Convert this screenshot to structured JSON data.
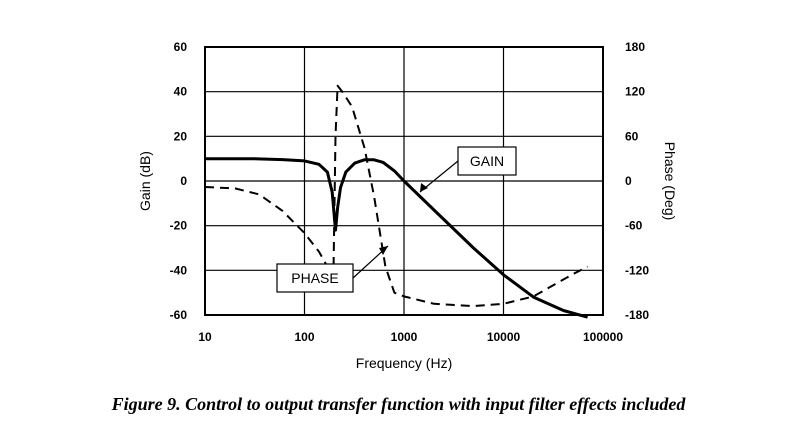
{
  "caption": "Figure 9. Control to output transfer function with input filter effects included",
  "chart_data": {
    "type": "line",
    "x_scale": "log",
    "xlim": [
      10,
      100000
    ],
    "ylim_left": [
      -60,
      60
    ],
    "ylim_right": [
      -180,
      180
    ],
    "xlabel": "Frequency (Hz)",
    "ylabel_left": "Gain (dB)",
    "ylabel_right": "Phase (Deg)",
    "x_ticks": [
      "10",
      "100",
      "1000",
      "10000",
      "100000"
    ],
    "y_ticks_left": [
      "60",
      "40",
      "20",
      "0",
      "-20",
      "-40",
      "-60"
    ],
    "y_ticks_right": [
      "180",
      "120",
      "60",
      "0",
      "-60",
      "-120",
      "-180"
    ],
    "grid": true,
    "annotations": [
      "GAIN",
      "PHASE"
    ],
    "series": [
      {
        "name": "GAIN",
        "axis": "left",
        "style": "solid",
        "x": [
          10,
          30,
          60,
          100,
          140,
          170,
          190,
          205,
          215,
          230,
          260,
          320,
          400,
          500,
          620,
          800,
          1000,
          2000,
          5000,
          10000,
          20000,
          40000,
          70000
        ],
        "y": [
          10,
          10,
          9.6,
          9,
          7.5,
          4,
          -5,
          -22,
          -12,
          -3,
          4,
          8,
          9.5,
          9.5,
          8.3,
          4.5,
          0,
          -13,
          -30,
          -42,
          -52,
          -58,
          -61
        ]
      },
      {
        "name": "PHASE",
        "axis": "right",
        "style": "dashed",
        "x": [
          10,
          20,
          35,
          60,
          100,
          140,
          170,
          195,
          205,
          215,
          240,
          300,
          400,
          500,
          550,
          650,
          800,
          1000,
          2000,
          5000,
          10000,
          20000,
          50000,
          70000
        ],
        "y": [
          -8,
          -10,
          -18,
          -40,
          -70,
          -95,
          -115,
          -130,
          60,
          128,
          120,
          100,
          45,
          -20,
          -55,
          -115,
          -150,
          -155,
          -165,
          -168,
          -165,
          -155,
          -125,
          -115
        ]
      }
    ]
  }
}
